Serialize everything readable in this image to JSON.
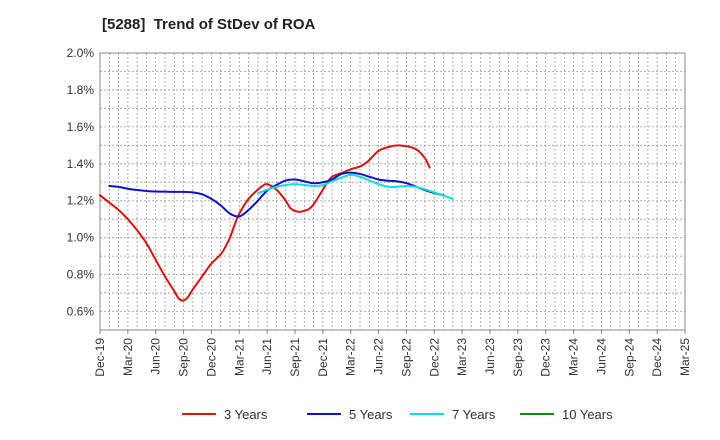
{
  "chart_data": {
    "type": "line",
    "title": "[5288]  Trend of StDev of ROA",
    "xlabel": "",
    "ylabel": "",
    "x_ticks": [
      "Dec-19",
      "Mar-20",
      "Jun-20",
      "Sep-20",
      "Dec-20",
      "Mar-21",
      "Jun-21",
      "Sep-21",
      "Dec-21",
      "Mar-22",
      "Jun-22",
      "Sep-22",
      "Dec-22",
      "Mar-23",
      "Jun-23",
      "Sep-23",
      "Dec-23",
      "Mar-24",
      "Jun-24",
      "Sep-24",
      "Dec-24",
      "Mar-25"
    ],
    "ylim": [
      0.5,
      2.0
    ],
    "y_ticks": [
      0.6,
      0.8,
      1.0,
      1.2,
      1.4,
      1.6,
      1.8,
      2.0
    ],
    "y_tick_labels": [
      "0.6%",
      "0.8%",
      "1.0%",
      "1.2%",
      "1.4%",
      "1.6%",
      "1.8%",
      "2.0%"
    ],
    "grid": true,
    "legend_position": "bottom",
    "series": [
      {
        "name": "3 Years",
        "color": "#dd1111",
        "points": [
          [
            0,
            1.23
          ],
          [
            1,
            1.19
          ],
          [
            2,
            1.15
          ],
          [
            3,
            1.1
          ],
          [
            4,
            1.04
          ],
          [
            5,
            0.97
          ],
          [
            6,
            0.88
          ],
          [
            7,
            0.79
          ],
          [
            8,
            0.71
          ],
          [
            8.5,
            0.67
          ],
          [
            9,
            0.66
          ],
          [
            9.5,
            0.68
          ],
          [
            10,
            0.72
          ],
          [
            11,
            0.79
          ],
          [
            12,
            0.86
          ],
          [
            13,
            0.91
          ],
          [
            13.5,
            0.95
          ],
          [
            14,
            1.0
          ],
          [
            14.5,
            1.07
          ],
          [
            15,
            1.13
          ],
          [
            16,
            1.21
          ],
          [
            17,
            1.26
          ],
          [
            17.5,
            1.28
          ],
          [
            18,
            1.29
          ],
          [
            19,
            1.26
          ],
          [
            20,
            1.2
          ],
          [
            20.5,
            1.16
          ],
          [
            21,
            1.145
          ],
          [
            21.5,
            1.14
          ],
          [
            22,
            1.145
          ],
          [
            22.5,
            1.155
          ],
          [
            23,
            1.18
          ],
          [
            24,
            1.26
          ],
          [
            24.5,
            1.3
          ],
          [
            25,
            1.33
          ],
          [
            26,
            1.35
          ],
          [
            27,
            1.37
          ],
          [
            28,
            1.385
          ],
          [
            28.5,
            1.4
          ],
          [
            29,
            1.42
          ],
          [
            30,
            1.47
          ],
          [
            31,
            1.49
          ],
          [
            32,
            1.5
          ],
          [
            33,
            1.495
          ],
          [
            33.5,
            1.49
          ],
          [
            34,
            1.48
          ],
          [
            34.5,
            1.46
          ],
          [
            35,
            1.43
          ],
          [
            35.5,
            1.38
          ]
        ]
      },
      {
        "name": "5 Years",
        "color": "#1111cc",
        "points": [
          [
            1,
            1.28
          ],
          [
            2,
            1.275
          ],
          [
            3,
            1.265
          ],
          [
            4,
            1.258
          ],
          [
            5,
            1.253
          ],
          [
            6,
            1.25
          ],
          [
            7,
            1.249
          ],
          [
            8,
            1.248
          ],
          [
            9,
            1.248
          ],
          [
            10,
            1.245
          ],
          [
            11,
            1.235
          ],
          [
            12,
            1.21
          ],
          [
            13,
            1.175
          ],
          [
            14,
            1.13
          ],
          [
            15,
            1.115
          ],
          [
            16,
            1.15
          ],
          [
            17,
            1.2
          ],
          [
            18,
            1.255
          ],
          [
            19,
            1.285
          ],
          [
            20,
            1.31
          ],
          [
            21,
            1.315
          ],
          [
            22,
            1.305
          ],
          [
            23,
            1.295
          ],
          [
            24,
            1.3
          ],
          [
            25,
            1.315
          ],
          [
            26,
            1.345
          ],
          [
            27,
            1.352
          ],
          [
            28,
            1.345
          ],
          [
            29,
            1.33
          ],
          [
            30,
            1.315
          ],
          [
            31,
            1.308
          ],
          [
            32,
            1.305
          ],
          [
            33,
            1.295
          ],
          [
            34,
            1.277
          ],
          [
            35,
            1.258
          ],
          [
            36,
            1.242
          ],
          [
            37,
            1.23
          ]
        ]
      },
      {
        "name": "7 Years",
        "color": "#11dddd",
        "points": [
          [
            17,
            1.24
          ],
          [
            18,
            1.26
          ],
          [
            19,
            1.275
          ],
          [
            20,
            1.285
          ],
          [
            21,
            1.29
          ],
          [
            22,
            1.285
          ],
          [
            23,
            1.28
          ],
          [
            24,
            1.285
          ],
          [
            25,
            1.305
          ],
          [
            26,
            1.325
          ],
          [
            27,
            1.34
          ],
          [
            28,
            1.33
          ],
          [
            29,
            1.31
          ],
          [
            30,
            1.29
          ],
          [
            31,
            1.275
          ],
          [
            32,
            1.275
          ],
          [
            33,
            1.28
          ],
          [
            34,
            1.275
          ],
          [
            35,
            1.262
          ],
          [
            36,
            1.245
          ],
          [
            37,
            1.228
          ],
          [
            38,
            1.21
          ]
        ]
      },
      {
        "name": "10 Years",
        "color": "#118811",
        "points": []
      }
    ]
  }
}
